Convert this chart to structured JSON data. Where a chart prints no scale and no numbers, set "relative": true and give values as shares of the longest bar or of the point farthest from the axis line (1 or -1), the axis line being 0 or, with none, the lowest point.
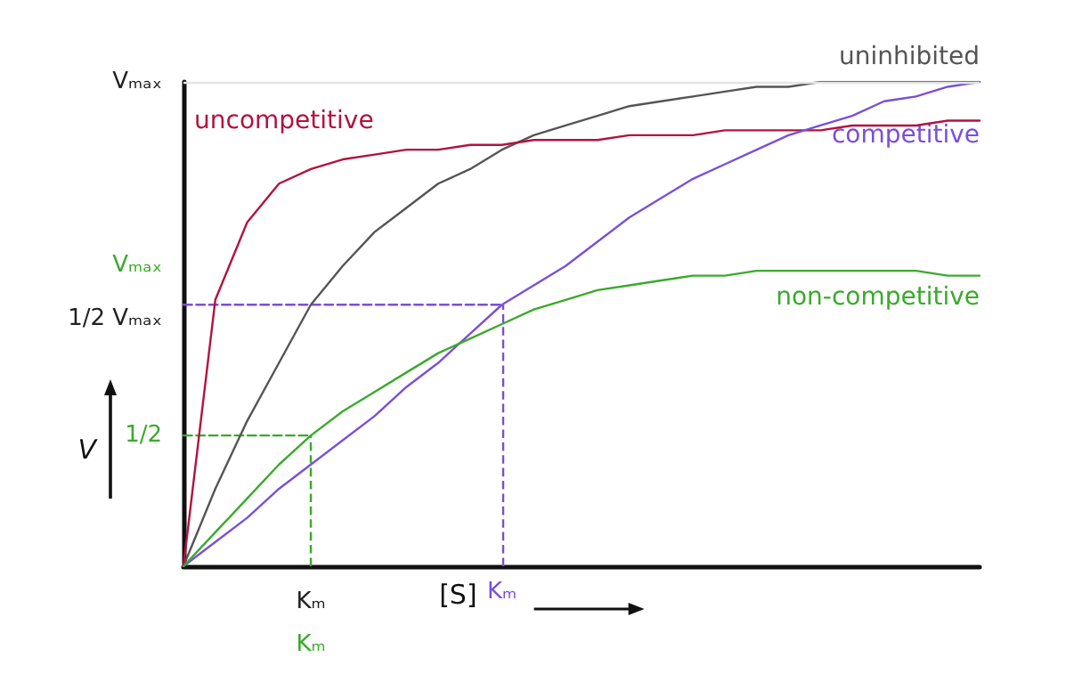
{
  "chart_data": {
    "type": "line",
    "xlabel": "[S]",
    "ylabel": "V",
    "relative": true,
    "categories": [
      null,
      null,
      null,
      null,
      "Kₘ\nKₘ",
      null,
      null,
      null,
      null,
      null,
      "Kₘ",
      null,
      null,
      null,
      null,
      null,
      null,
      null,
      null,
      null,
      null,
      null,
      null,
      null,
      null,
      null
    ],
    "annotations": [
      "Vₘₐₓ",
      "Vₘₐₓ",
      "1/2 Vₘₐₓ",
      "1/2"
    ],
    "grid": false,
    "legend": false,
    "marker": "none",
    "line_style": "solid",
    "ref_lines": [
      {
        "axis": "y",
        "value": 1,
        "color": "#e4e4e4"
      },
      {
        "axis": "x",
        "value": "Kₘ\nKₘ",
        "color": "#3aaa2c",
        "line_style": "dashed"
      },
      {
        "axis": "x",
        "value": "Kₘ",
        "color": "#7a4fd8",
        "line_style": "dashed"
      }
    ],
    "series": [
      {
        "name": "uninhibited",
        "color": "#555555",
        "values": [
          0,
          0.16,
          0.3,
          0.42,
          0.54,
          0.62,
          0.69,
          0.74,
          0.79,
          0.82,
          0.86,
          0.89,
          0.91,
          0.93,
          0.95,
          0.96,
          0.97,
          0.98,
          0.99,
          0.99,
          1,
          1,
          1,
          1,
          1,
          1
        ]
      },
      {
        "name": "uncompetitive",
        "color": "#b3123f",
        "values": [
          0,
          0.55,
          0.71,
          0.79,
          0.82,
          0.84,
          0.85,
          0.86,
          0.86,
          0.87,
          0.87,
          0.88,
          0.88,
          0.88,
          0.89,
          0.89,
          0.89,
          0.9,
          0.9,
          0.9,
          0.9,
          0.91,
          0.91,
          0.91,
          0.92,
          0.92
        ]
      },
      {
        "name": "competitive",
        "color": "#7a4fd8",
        "values": [
          0,
          0.05,
          0.1,
          0.16,
          0.21,
          0.26,
          0.31,
          0.37,
          0.42,
          0.48,
          0.54,
          0.58,
          0.62,
          0.67,
          0.72,
          0.76,
          0.8,
          0.83,
          0.86,
          0.89,
          0.91,
          0.93,
          0.96,
          0.97,
          0.99,
          1
        ]
      },
      {
        "name": "non-competitive",
        "color": "#3aaa2c",
        "values": [
          0,
          0.07,
          0.14,
          0.21,
          0.27,
          0.32,
          0.36,
          0.4,
          0.44,
          0.47,
          0.5,
          0.53,
          0.55,
          0.57,
          0.58,
          0.59,
          0.6,
          0.6,
          0.61,
          0.61,
          0.61,
          0.61,
          0.61,
          0.61,
          0.6,
          0.6
        ]
      },
      {
        "color": "#7a4fd8",
        "line_style": "dashed",
        "values": [
          0.54,
          0.54,
          0.54,
          0.54,
          0.54,
          0.54,
          0.54,
          0.54,
          0.54,
          0.54,
          0.54,
          null,
          null,
          null,
          null,
          null,
          null,
          null,
          null,
          null,
          null,
          null,
          null,
          null,
          null,
          null
        ]
      },
      {
        "color": "#3aaa2c",
        "line_style": "dashed",
        "values": [
          0.27,
          0.27,
          0.27,
          0.27,
          0.27,
          null,
          null,
          null,
          null,
          null,
          null,
          null,
          null,
          null,
          null,
          null,
          null,
          null,
          null,
          null,
          null,
          null,
          null,
          null,
          null,
          null
        ]
      }
    ]
  }
}
